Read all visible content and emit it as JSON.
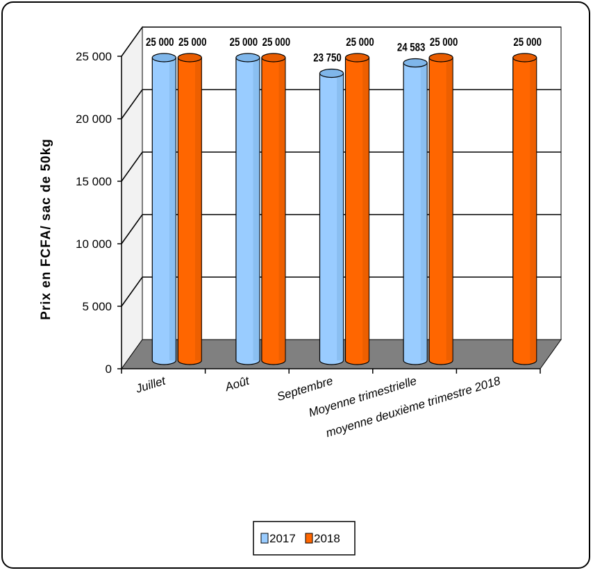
{
  "chart_data": {
    "type": "bar",
    "style": "3d-cylinder",
    "categories": [
      "Juillet",
      "Août",
      "Septembre",
      "Moyenne trimestrielle",
      "moyenne deuxième trimestre 2018"
    ],
    "series": [
      {
        "name": "2017",
        "values": [
          25000,
          25000,
          23750,
          24583,
          null
        ],
        "labels": [
          "25 000",
          "25 000",
          "23 750",
          "24 583",
          ""
        ],
        "color": "#99ccff"
      },
      {
        "name": "2018",
        "values": [
          25000,
          25000,
          25000,
          25000,
          25000
        ],
        "labels": [
          "25 000",
          "25 000",
          "25 000",
          "25 000",
          "25 000"
        ],
        "color": "#ff6600"
      }
    ],
    "xlabel": "",
    "ylabel": "Prix en FCFA/ sac de 50kg",
    "ylim": [
      0,
      25000
    ],
    "yticks": [
      0,
      5000,
      10000,
      15000,
      20000,
      25000
    ],
    "ytick_labels": [
      "0",
      "5 000",
      "10 000",
      "15 000",
      "20 000",
      "25 000"
    ],
    "grid": true,
    "legend": "bottom-center",
    "colors": {
      "wall": "#ffffff",
      "floor": "#808080",
      "side_wall": "#f2f2f2",
      "gridline": "#000000"
    }
  }
}
